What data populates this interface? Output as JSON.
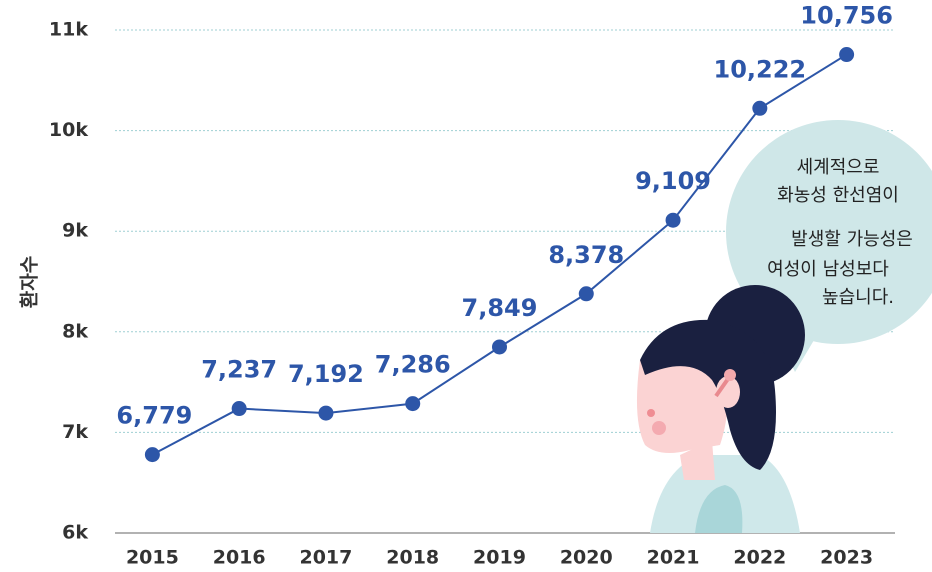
{
  "chart_data": {
    "type": "line",
    "y_label": "환자수",
    "categories": [
      "2015",
      "2016",
      "2017",
      "2018",
      "2019",
      "2020",
      "2021",
      "2022",
      "2023"
    ],
    "values": [
      6779,
      7237,
      7192,
      7286,
      7849,
      8378,
      9109,
      10222,
      10756
    ],
    "value_labels": [
      "6,779",
      "7,237",
      "7,192",
      "7,286",
      "7,849",
      "8,378",
      "9,109",
      "10,222",
      "10,756"
    ],
    "color": "#2d56a8",
    "ylim": [
      6000,
      11000
    ],
    "yticks": [
      {
        "value": 6000,
        "label": "6k"
      },
      {
        "value": 7000,
        "label": "7k"
      },
      {
        "value": 8000,
        "label": "8k"
      },
      {
        "value": 9000,
        "label": "9k"
      },
      {
        "value": 10000,
        "label": "10k"
      },
      {
        "value": 11000,
        "label": "11k"
      }
    ],
    "grid": true,
    "annotation": [
      "세계적으로",
      "화농성 한선염이",
      "발생할 가능성은",
      "여성이 남성보다",
      "높습니다."
    ]
  }
}
